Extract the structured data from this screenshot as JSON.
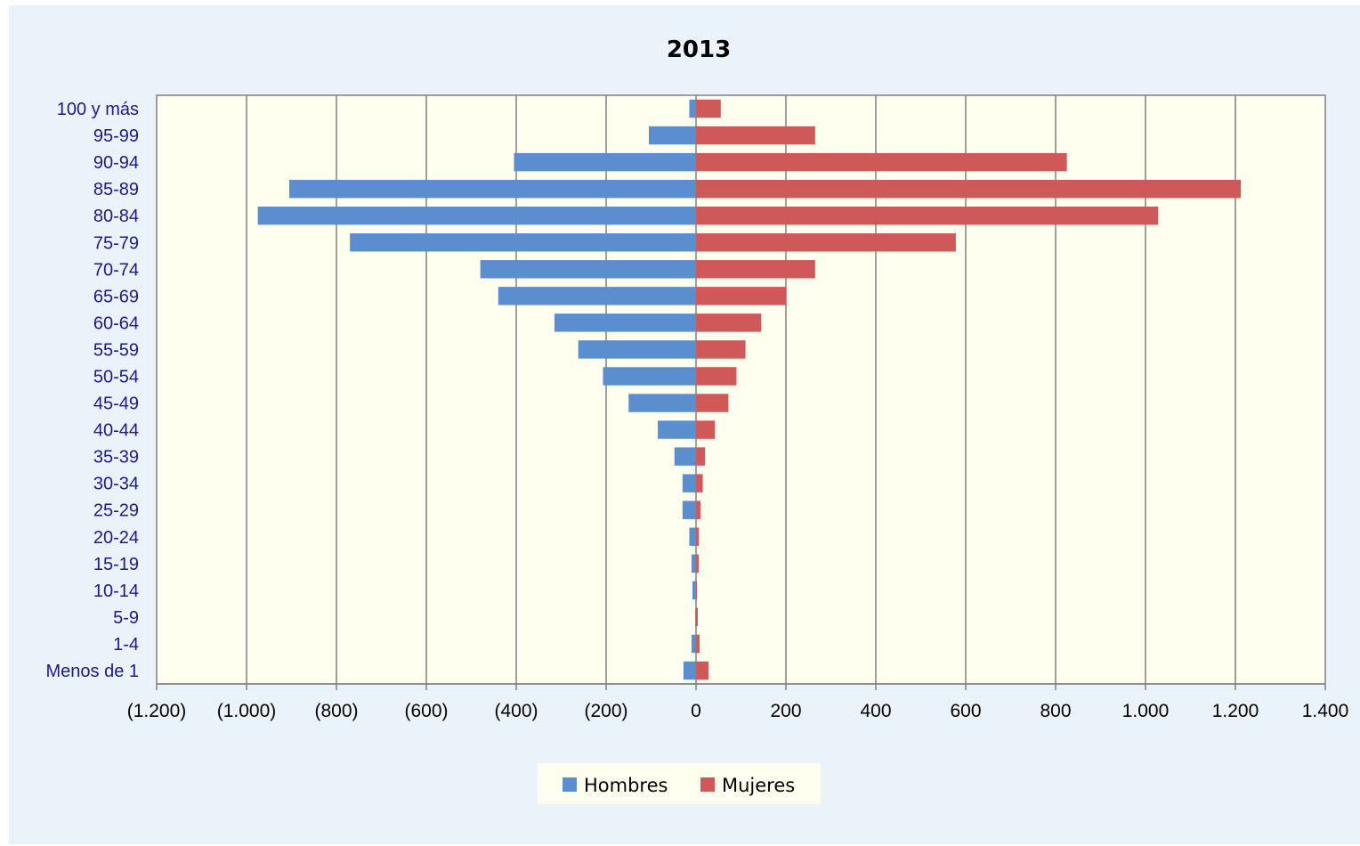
{
  "chart_data": {
    "type": "bar",
    "orientation": "horizontal",
    "title": "2013",
    "categories": [
      "100 y más",
      "95-99",
      "90-94",
      "85-89",
      "80-84",
      "75-79",
      "70-74",
      "65-69",
      "60-64",
      "55-59",
      "50-54",
      "45-49",
      "40-44",
      "35-39",
      "30-34",
      "25-29",
      "20-24",
      "15-19",
      "10-14",
      "5-9",
      "1-4",
      "Menos de 1"
    ],
    "series": [
      {
        "name": "Hombres",
        "color": "#5b8ecf",
        "values": [
          -15,
          -105,
          -405,
          -905,
          -975,
          -770,
          -480,
          -440,
          -315,
          -262,
          -207,
          -150,
          -85,
          -48,
          -30,
          -30,
          -15,
          -10,
          -8,
          -2,
          -10,
          -28
        ]
      },
      {
        "name": "Mujeres",
        "color": "#cf5858",
        "values": [
          55,
          265,
          825,
          1212,
          1028,
          578,
          265,
          200,
          145,
          110,
          90,
          72,
          42,
          20,
          15,
          10,
          6,
          6,
          2,
          4,
          8,
          28
        ]
      }
    ],
    "xlim": [
      -1200,
      1400
    ],
    "ticks": [
      -1200,
      -1000,
      -800,
      -600,
      -400,
      -200,
      0,
      200,
      400,
      600,
      800,
      1000,
      1200,
      1400
    ],
    "tick_labels": [
      "(1.200)",
      "(1.000)",
      "(800)",
      "(600)",
      "(400)",
      "(200)",
      "0",
      "200",
      "400",
      "600",
      "800",
      "1.000",
      "1.200",
      "1.400"
    ],
    "grid": true,
    "legend_position": "bottom",
    "plot_background": "#fffff0",
    "chart_background": "#eaf3fa"
  }
}
